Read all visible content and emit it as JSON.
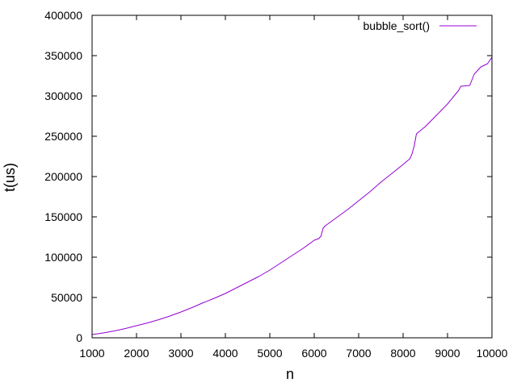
{
  "chart_data": {
    "type": "line",
    "title": "",
    "xlabel": "n",
    "ylabel": "t(us)",
    "xlim": [
      1000,
      10000
    ],
    "ylim": [
      0,
      400000
    ],
    "xticks": [
      1000,
      2000,
      3000,
      4000,
      5000,
      6000,
      7000,
      8000,
      9000,
      10000
    ],
    "yticks": [
      0,
      50000,
      100000,
      150000,
      200000,
      250000,
      300000,
      350000,
      400000
    ],
    "grid": false,
    "legend_position": "top-right",
    "series": [
      {
        "name": "bubble_sort()",
        "color": "#9400d3",
        "x": [
          1000,
          1250,
          1500,
          1750,
          2000,
          2250,
          2500,
          2750,
          3000,
          3250,
          3500,
          3750,
          4000,
          4250,
          4500,
          4750,
          5000,
          5250,
          5500,
          5750,
          6000,
          6100,
          6150,
          6200,
          6250,
          6500,
          6750,
          7000,
          7250,
          7500,
          7750,
          8000,
          8150,
          8200,
          8250,
          8300,
          8500,
          8750,
          9000,
          9250,
          9300,
          9500,
          9600,
          9750,
          9900,
          10000
        ],
        "y": [
          4000,
          6000,
          8500,
          11500,
          15000,
          18500,
          22500,
          27000,
          32000,
          37500,
          43500,
          49000,
          55000,
          62000,
          69000,
          76000,
          84000,
          93000,
          102000,
          111000,
          121000,
          123000,
          126000,
          136000,
          139000,
          149000,
          159000,
          170000,
          181000,
          193000,
          204000,
          215000,
          222000,
          228000,
          238000,
          253000,
          262000,
          276000,
          290000,
          307000,
          312000,
          313000,
          327000,
          336000,
          340000,
          348000
        ]
      }
    ]
  }
}
